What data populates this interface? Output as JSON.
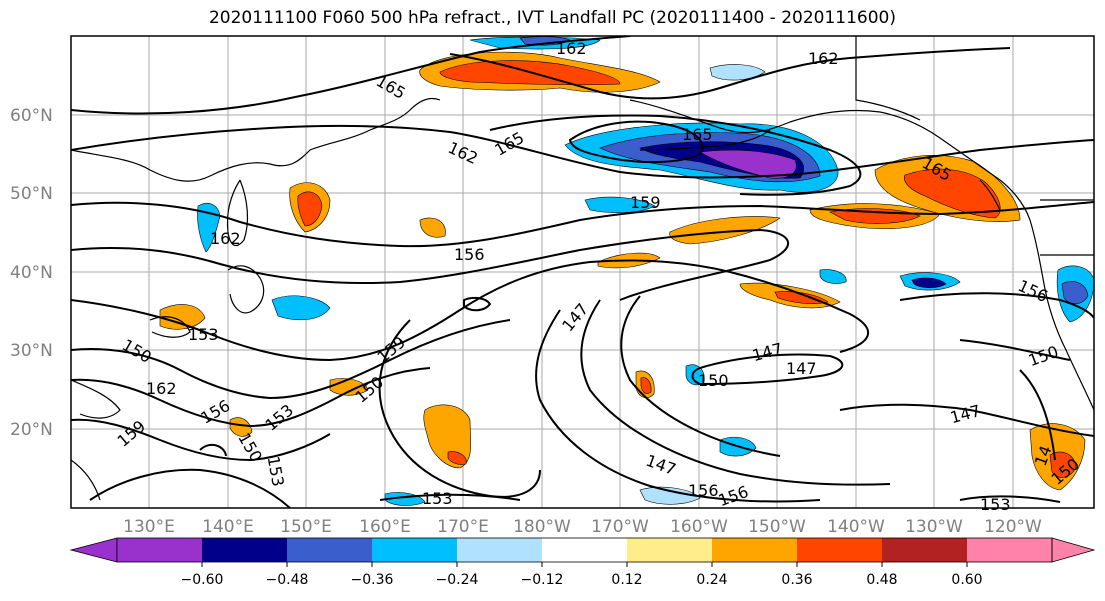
{
  "title": "2020111100 F060 500 hPa refract., IVT Landfall PC (2020111400 - 2020111600)",
  "lat_labels": [
    "60°N",
    "50°N",
    "40°N",
    "30°N",
    "20°N"
  ],
  "lon_labels": [
    "130°E",
    "140°E",
    "150°E",
    "160°E",
    "170°E",
    "180°W",
    "170°W",
    "160°W",
    "150°W",
    "140°W",
    "130°W",
    "120°W"
  ],
  "contour_labels": [
    "162",
    "162",
    "165",
    "165",
    "162",
    "165",
    "165",
    "159",
    "162",
    "156",
    "153",
    "150",
    "159",
    "162",
    "156",
    "150",
    "153",
    "159",
    "150",
    "153",
    "147",
    "147",
    "150",
    "147",
    "147",
    "147",
    "153",
    "156",
    "156",
    "150",
    "153",
    "14",
    "150"
  ],
  "colorbar": {
    "ticks": [
      "−0.60",
      "−0.48",
      "−0.36",
      "−0.24",
      "−0.12",
      "0.12",
      "0.24",
      "0.36",
      "0.48",
      "0.60"
    ],
    "colors": [
      "#9932cc",
      "#00008b",
      "#3a5fcd",
      "#00bfff",
      "#b0e2ff",
      "#ffffff",
      "#ffec8b",
      "#ffa500",
      "#ff4500",
      "#b22222",
      "#ff82ab"
    ]
  }
}
